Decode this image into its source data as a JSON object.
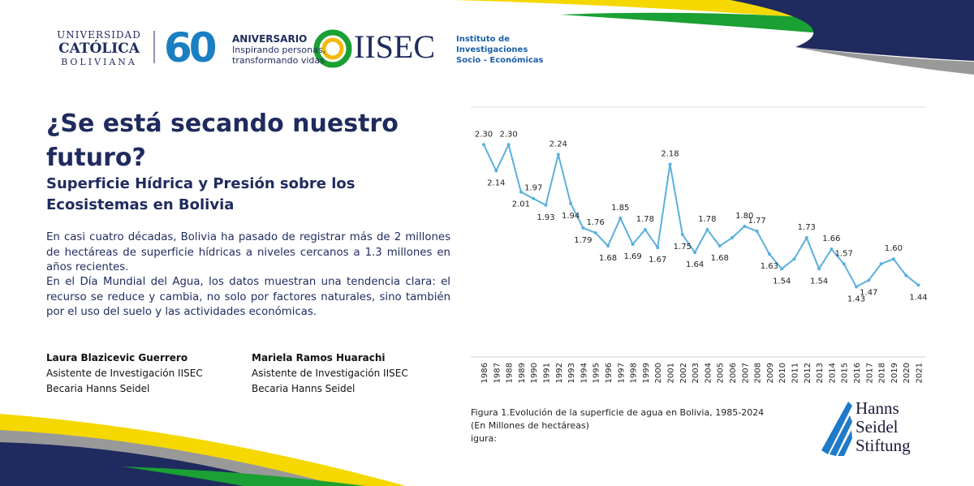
{
  "header": {
    "ucb": [
      "UNIVERSIDAD",
      "CATÓLICA",
      "BOLIVIANA"
    ],
    "anniversary": {
      "number": "60",
      "title": "ANIVERSARIO",
      "lines": [
        "Inspirando personas,",
        "transformando vidas"
      ]
    },
    "iisec": {
      "name": "IISEC",
      "lines": [
        "Instituto de",
        "Investigaciones",
        "Socio - Económicas"
      ]
    }
  },
  "title": "¿Se está secando nuestro futuro?",
  "subtitle": "Superficie Hídrica y Presión sobre los Ecosistemas en Bolivia",
  "paragraphs": [
    "En casi cuatro décadas, Bolivia ha pasado de registrar más de 2 millones de hectáreas de superficie hídricas a niveles cercanos a 1.3 millones en años recientes.",
    "En el Día Mundial del Agua, los datos muestran una tendencia clara: el recurso se reduce y cambia, no solo por factores naturales, sino también por el uso del suelo y las actividades económicas."
  ],
  "authors": [
    {
      "name": "Laura Blazicevic Guerrero",
      "role": "Asistente de Investigación IISEC",
      "grant": "Becaria Hanns Seidel"
    },
    {
      "name": "Mariela Ramos Huarachi",
      "role": "Asistente de Investigación IISEC",
      "grant": "Becaria Hanns Seidel"
    }
  ],
  "caption": [
    "Figura 1.Evolución de la superficie de agua en Bolivia, 1985-2024",
    "(En Millones de hectáreas)",
    "igura:"
  ],
  "footer_logo": [
    "Hanns",
    "Seidel",
    "Stiftung"
  ],
  "chart_data": {
    "type": "line",
    "categories": [
      "1986",
      "1987",
      "1988",
      "1989",
      "1990",
      "1991",
      "1992",
      "1993",
      "1994",
      "1995",
      "1996",
      "1997",
      "1998",
      "1999",
      "2000",
      "2001",
      "2002",
      "2003",
      "2004",
      "2005",
      "2006",
      "2007",
      "2008",
      "2009",
      "2010",
      "2011",
      "2012",
      "2013",
      "2014",
      "2015",
      "2016",
      "2017",
      "2018",
      "2019",
      "2020",
      "2021"
    ],
    "values": [
      2.3,
      2.14,
      2.3,
      2.01,
      1.97,
      1.93,
      2.24,
      1.94,
      1.79,
      1.76,
      1.68,
      1.85,
      1.69,
      1.78,
      1.67,
      2.18,
      1.75,
      1.64,
      1.78,
      1.68,
      1.73,
      1.8,
      1.77,
      1.63,
      1.54,
      1.6,
      1.73,
      1.54,
      1.66,
      1.57,
      1.43,
      1.47,
      1.57,
      1.6,
      1.5,
      1.44
    ],
    "value_labels": [
      "2.30",
      "2.14",
      "2.30",
      "2.01",
      "1.97",
      "1.93",
      "2.24",
      "1.94",
      "1.79",
      "1.76",
      "1.68",
      "1.85",
      "1.69",
      "1.78",
      "1.67",
      "2.18",
      "1.75",
      "1.64",
      "1.78",
      "1.68",
      null,
      "1.80",
      "1.77",
      "1.63",
      "1.54",
      null,
      "1.73",
      "1.54",
      "1.66",
      "1.57",
      "1.43",
      "1.47",
      null,
      "1.60",
      null,
      "1.44"
    ],
    "color": "#5ab0dc",
    "ylim": [
      1.0,
      2.53
    ]
  }
}
